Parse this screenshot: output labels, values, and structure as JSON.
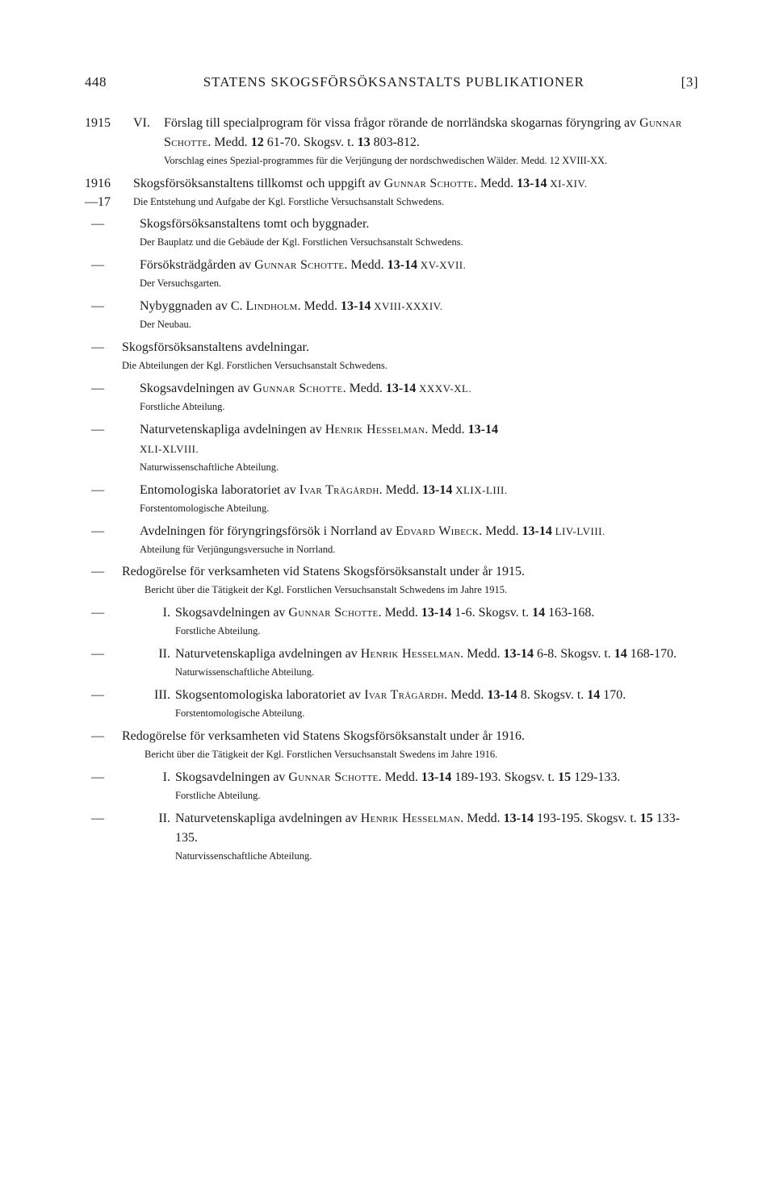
{
  "header": {
    "pagenum": "448",
    "title": "STATENS SKOGSFÖRSÖKSANSTALTS PUBLIKATIONER",
    "bracket": "[3]"
  },
  "e1915": {
    "year": "1915",
    "num": "VI.",
    "main_a": "Förslag till specialprogram för vissa frågor rörande de norrländska skogarnas föryngring av ",
    "author": "Gunnar Schotte",
    "main_b": ".  Medd. ",
    "vol": "12",
    "pages": " 61-70. Skogsv. t. ",
    "vol2": "13",
    "pages2": " 803-812.",
    "note": "Vorschlag eines Spezial-programmes für die Verjüngung der nordschwedischen Wälder. Medd. 12 XVIII-XX."
  },
  "e1916": {
    "year": "1916",
    "year2": "—17",
    "main_a": "Skogsförsöksanstaltens tillkomst och uppgift av ",
    "author": "Gunnar Schotte",
    "main_b": ". Medd. ",
    "vol": "13-14",
    "roman": " XI-XIV.",
    "note": "Die Entstehung und Aufgabe der Kgl. Forstliche Versuchsanstalt Schwedens."
  },
  "tomt": {
    "main": "Skogsförsöksanstaltens tomt och byggnader.",
    "note": "Der Bauplatz und die Gebäude der Kgl. Forstlichen Versuchsanstalt Schwedens."
  },
  "tradgarden": {
    "main_a": "Försöksträdgården av ",
    "author": "Gunnar Schotte",
    "main_b": ".  Medd. ",
    "vol": "13-14",
    "roman": " XV-XVII.",
    "note": "Der Versuchsgarten."
  },
  "nybygg": {
    "main_a": "Nybyggnaden av C. ",
    "author": "Lindholm",
    "main_b": ".  Medd. ",
    "vol": "13-14",
    "roman": " XVIII-XXXIV.",
    "note": "Der Neubau."
  },
  "avdel": {
    "main": "Skogsförsöksanstaltens avdelningar.",
    "note": "Die Abteilungen der Kgl. Forstlichen Versuchsanstalt Schwedens."
  },
  "skogsavd": {
    "main_a": "Skogsavdelningen av ",
    "author": "Gunnar Schotte",
    "main_b": ".  Medd. ",
    "vol": "13-14",
    "roman": " XXXV-XL.",
    "note": "Forstliche Abteilung."
  },
  "naturvet": {
    "main_a": "Naturvetenskapliga avdelningen av ",
    "author": "Henrik Hesselman",
    "main_b": ". Medd. ",
    "vol": "13-14",
    "roman": "XLI-XLVIII.",
    "note": "Naturwissenschaftliche Abteilung."
  },
  "entomo": {
    "main_a": "Entomologiska laboratoriet av ",
    "author": "Ivar Trägårdh",
    "main_b": ".  Medd. ",
    "vol": "13-14",
    "roman": " XLIX-LIII.",
    "note": "Forstentomologische Abteilung."
  },
  "foryngr": {
    "main_a": "Avdelningen för föryngringsförsök i Norrland av ",
    "author": "Edvard Wibeck",
    "main_b": ". Medd. ",
    "vol": "13-14",
    "roman": " LIV-LVIII.",
    "note": "Abteilung für Verjüngungsversuche in Norrland."
  },
  "redo1915": {
    "main": "Redogörelse för verksamheten vid Statens Skogsförsöksanstalt under år 1915.",
    "note": "Bericht über die Tätigkeit der Kgl. Forstlichen Versuchsanstalt Schwedens im Jahre 1915."
  },
  "r1915_I": {
    "num": "I.",
    "main_a": "Skogsavdelningen av ",
    "author": "Gunnar Schotte",
    "main_b": ". Medd. ",
    "vol": "13-14",
    "pages": " 1-6. Skogsv. t. ",
    "vol2": "14",
    "pages2": " 163-168.",
    "note": "Forstliche Abteilung."
  },
  "r1915_II": {
    "num": "II.",
    "main_a": "Naturvetenskapliga avdelningen av ",
    "author": "Henrik Hesselman",
    "main_b": ".  Medd. ",
    "vol": "13-14",
    "pages": " 6-8.  Skogsv. t. ",
    "vol2": "14",
    "pages2": " 168-170.",
    "note": "Naturwissenschaftliche Abteilung."
  },
  "r1915_III": {
    "num": "III.",
    "main_a": "Skogsentomologiska laboratoriet av ",
    "author": "Ivar Trägårdh",
    "main_b": ". Medd. ",
    "vol": "13-14",
    "pages": " 8. Skogsv. t. ",
    "vol2": "14",
    "pages2": " 170.",
    "note": "Forstentomologische Abteilung."
  },
  "redo1916": {
    "main": "Redogörelse för verksamheten vid Statens Skogsförsöksanstalt under år 1916.",
    "note": "Bericht über die Tätigkeit der Kgl. Forstlichen Versuchsanstalt Swedens im Jahre 1916."
  },
  "r1916_I": {
    "num": "I.",
    "main_a": "Skogsavdelningen av ",
    "author": "Gunnar Schotte",
    "main_b": ".  Medd. ",
    "vol": "13-14",
    "pages": " 189-193. Skogsv. t. ",
    "vol2": "15",
    "pages2": " 129-133.",
    "note": "Forstliche Abteilung."
  },
  "r1916_II": {
    "num": "II.",
    "main_a": "Naturvetenskapliga avdelningen av ",
    "author": "Henrik Hesselman",
    "main_b": ". Medd. ",
    "vol": "13-14",
    "pages": " 193-195.  Skogsv. t. ",
    "vol2": "15",
    "pages2": " 133-135.",
    "note": "Naturvissenschaftliche Abteilung."
  }
}
